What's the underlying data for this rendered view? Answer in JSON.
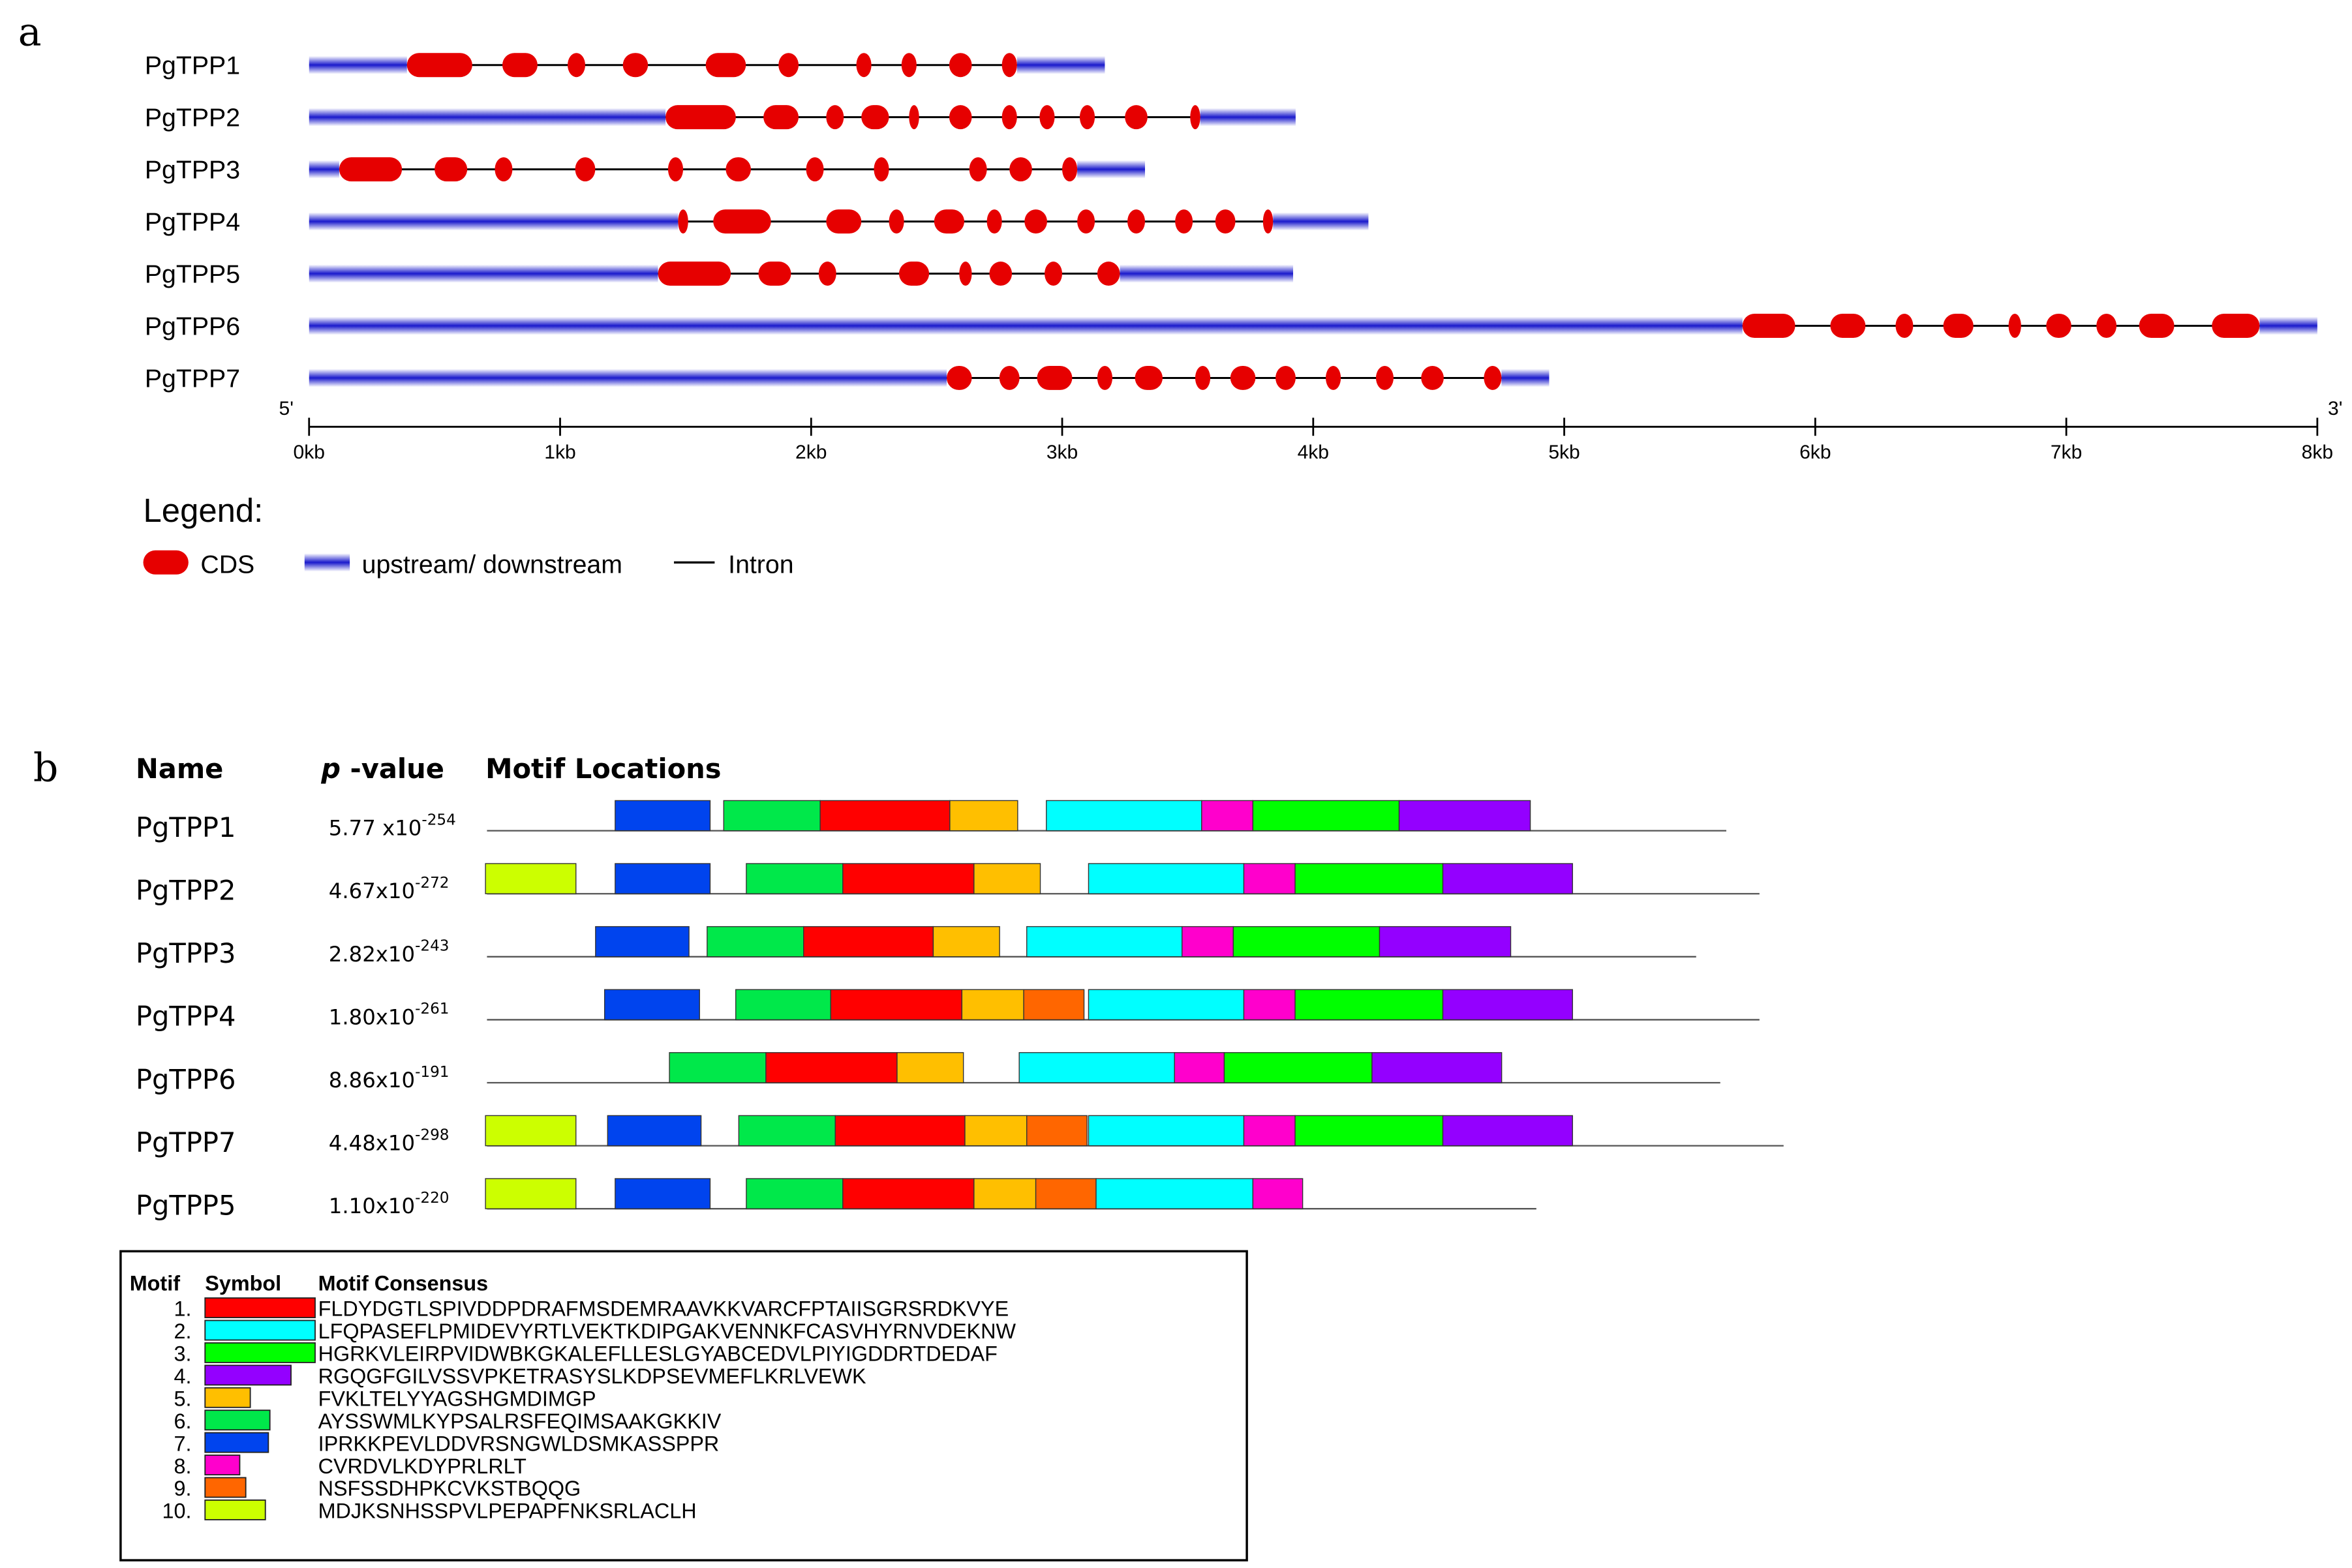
{
  "panel_a": {
    "label": "a",
    "genes": [
      {
        "name": "PgTPP1",
        "end_kb": 3.17,
        "cds": [
          [
            0.39,
            0.65
          ],
          [
            0.77,
            0.91
          ],
          [
            1.03,
            1.1
          ],
          [
            1.25,
            1.35
          ],
          [
            1.58,
            1.74
          ],
          [
            1.87,
            1.95
          ],
          [
            2.18,
            2.24
          ],
          [
            2.36,
            2.42
          ],
          [
            2.55,
            2.64
          ],
          [
            2.76,
            2.82
          ]
        ]
      },
      {
        "name": "PgTPP2",
        "end_kb": 3.93,
        "cds": [
          [
            1.42,
            1.7
          ],
          [
            1.81,
            1.95
          ],
          [
            2.06,
            2.13
          ],
          [
            2.2,
            2.31
          ],
          [
            2.39,
            2.43
          ],
          [
            2.55,
            2.64
          ],
          [
            2.76,
            2.82
          ],
          [
            2.91,
            2.97
          ],
          [
            3.07,
            3.13
          ],
          [
            3.25,
            3.34
          ],
          [
            3.51,
            3.55
          ]
        ]
      },
      {
        "name": "PgTPP3",
        "end_kb": 3.33,
        "cds": [
          [
            0.12,
            0.37
          ],
          [
            0.5,
            0.63
          ],
          [
            0.74,
            0.81
          ],
          [
            1.06,
            1.14
          ],
          [
            1.43,
            1.49
          ],
          [
            1.66,
            1.76
          ],
          [
            1.98,
            2.05
          ],
          [
            2.25,
            2.31
          ],
          [
            2.63,
            2.7
          ],
          [
            2.79,
            2.88
          ],
          [
            3.0,
            3.06
          ]
        ]
      },
      {
        "name": "PgTPP4",
        "end_kb": 4.22,
        "cds": [
          [
            1.47,
            1.51
          ],
          [
            1.61,
            1.84
          ],
          [
            2.06,
            2.2
          ],
          [
            2.31,
            2.37
          ],
          [
            2.49,
            2.61
          ],
          [
            2.7,
            2.76
          ],
          [
            2.85,
            2.94
          ],
          [
            3.06,
            3.13
          ],
          [
            3.26,
            3.33
          ],
          [
            3.45,
            3.52
          ],
          [
            3.61,
            3.69
          ],
          [
            3.8,
            3.84
          ]
        ]
      },
      {
        "name": "PgTPP5",
        "end_kb": 3.92,
        "cds": [
          [
            1.39,
            1.68
          ],
          [
            1.79,
            1.92
          ],
          [
            2.03,
            2.1
          ],
          [
            2.35,
            2.47
          ],
          [
            2.59,
            2.64
          ],
          [
            2.71,
            2.8
          ],
          [
            2.93,
            3.0
          ],
          [
            3.14,
            3.23
          ]
        ]
      },
      {
        "name": "PgTPP6",
        "end_kb": 8.0,
        "cds": [
          [
            5.71,
            5.92
          ],
          [
            6.06,
            6.2
          ],
          [
            6.32,
            6.39
          ],
          [
            6.51,
            6.63
          ],
          [
            6.77,
            6.82
          ],
          [
            6.92,
            7.02
          ],
          [
            7.12,
            7.2
          ],
          [
            7.29,
            7.43
          ],
          [
            7.58,
            7.77
          ]
        ]
      },
      {
        "name": "PgTPP7",
        "end_kb": 4.94,
        "cds": [
          [
            2.54,
            2.64
          ],
          [
            2.75,
            2.83
          ],
          [
            2.9,
            3.04
          ],
          [
            3.14,
            3.2
          ],
          [
            3.29,
            3.4
          ],
          [
            3.53,
            3.59
          ],
          [
            3.67,
            3.77
          ],
          [
            3.85,
            3.93
          ],
          [
            4.05,
            4.11
          ],
          [
            4.25,
            4.32
          ],
          [
            4.43,
            4.52
          ],
          [
            4.68,
            4.75
          ]
        ]
      }
    ],
    "axis": {
      "min_kb": 0,
      "max_kb": 8,
      "ticks": [
        "0kb",
        "1kb",
        "2kb",
        "3kb",
        "4kb",
        "5kb",
        "6kb",
        "7kb",
        "8kb"
      ],
      "five_prime": "5'",
      "three_prime": "3'"
    },
    "legend": {
      "title": "Legend:",
      "cds": "CDS",
      "utr": "upstream/ downstream",
      "intron": "Intron"
    },
    "colors": {
      "cds": "#e60000",
      "utr": "#1a1acc",
      "intron": "#000000"
    }
  },
  "panel_b": {
    "label": "b",
    "headers": {
      "name": "Name",
      "p_italic": "p",
      "p_rest": " -value",
      "locations": "Motif Locations"
    },
    "proteins": [
      {
        "name": "PgTPP1",
        "p_mantissa": "5.77 x10",
        "p_exp": "-254",
        "length_end": 1145,
        "motifs": [
          [
            7,
            408,
            471
          ],
          [
            6,
            480,
            544
          ],
          [
            1,
            544,
            630
          ],
          [
            5,
            630,
            675
          ],
          [
            2,
            694,
            797
          ],
          [
            8,
            797,
            831
          ],
          [
            3,
            831,
            928
          ],
          [
            4,
            928,
            1015
          ]
        ]
      },
      {
        "name": "PgTPP2",
        "p_mantissa": "4.67x10",
        "p_exp": "-272",
        "length_end": 1167,
        "motifs": [
          [
            10,
            322,
            382
          ],
          [
            7,
            408,
            471
          ],
          [
            6,
            495,
            559
          ],
          [
            1,
            559,
            646
          ],
          [
            5,
            646,
            690
          ],
          [
            2,
            722,
            825
          ],
          [
            8,
            825,
            859
          ],
          [
            3,
            859,
            957
          ],
          [
            4,
            957,
            1043
          ]
        ]
      },
      {
        "name": "PgTPP3",
        "p_mantissa": "2.82x10",
        "p_exp": "-243",
        "length_end": 1125,
        "motifs": [
          [
            7,
            395,
            457
          ],
          [
            6,
            469,
            533
          ],
          [
            1,
            533,
            619
          ],
          [
            5,
            619,
            663
          ],
          [
            2,
            681,
            784
          ],
          [
            8,
            784,
            818
          ],
          [
            3,
            818,
            915
          ],
          [
            4,
            915,
            1002
          ]
        ]
      },
      {
        "name": "PgTPP4",
        "p_mantissa": "1.80x10",
        "p_exp": "-261",
        "length_end": 1167,
        "motifs": [
          [
            7,
            401,
            464
          ],
          [
            6,
            488,
            551
          ],
          [
            1,
            551,
            638
          ],
          [
            5,
            638,
            679
          ],
          [
            9,
            679,
            719
          ],
          [
            2,
            722,
            825
          ],
          [
            8,
            825,
            859
          ],
          [
            3,
            859,
            957
          ],
          [
            4,
            957,
            1043
          ]
        ]
      },
      {
        "name": "PgTPP6",
        "p_mantissa": "8.86x10",
        "p_exp": "-191",
        "length_end": 1141,
        "motifs": [
          [
            6,
            444,
            508
          ],
          [
            1,
            508,
            595
          ],
          [
            5,
            595,
            639
          ],
          [
            2,
            676,
            779
          ],
          [
            8,
            779,
            812
          ],
          [
            3,
            812,
            910
          ],
          [
            4,
            910,
            996
          ]
        ]
      },
      {
        "name": "PgTPP7",
        "p_mantissa": "4.48x10",
        "p_exp": "-298",
        "length_end": 1183,
        "motifs": [
          [
            10,
            322,
            382
          ],
          [
            7,
            403,
            465
          ],
          [
            6,
            490,
            554
          ],
          [
            1,
            554,
            640
          ],
          [
            5,
            640,
            681
          ],
          [
            9,
            681,
            721
          ],
          [
            2,
            722,
            825
          ],
          [
            8,
            825,
            859
          ],
          [
            3,
            859,
            957
          ],
          [
            4,
            957,
            1043
          ]
        ]
      },
      {
        "name": "PgTPP5",
        "p_mantissa": "1.10x10",
        "p_exp": "-220",
        "length_end": 1019,
        "motifs": [
          [
            10,
            322,
            382
          ],
          [
            7,
            408,
            471
          ],
          [
            6,
            495,
            559
          ],
          [
            1,
            559,
            646
          ],
          [
            5,
            646,
            687
          ],
          [
            9,
            687,
            727
          ],
          [
            2,
            727,
            831
          ],
          [
            8,
            831,
            864
          ]
        ]
      }
    ],
    "motif_table": {
      "headers": [
        "Motif",
        "Symbol",
        "Motif Consensus"
      ],
      "rows": [
        {
          "num": "1.",
          "color": "#ff0000",
          "width": 73,
          "consensus": "FLDYDGTLSPIVDDPDRAFMSDEMRAAVKKVARCFPTAIISGRSRDKVYE"
        },
        {
          "num": "2.",
          "color": "#00ffff",
          "width": 73,
          "consensus": "LFQPASEFLPMIDEVYRTLVEKTKDIPGAKVENNKFCASVHYRNVDEKNW"
        },
        {
          "num": "3.",
          "color": "#00ff00",
          "width": 73,
          "consensus": "HGRKVLEIRPVIDWBKGKALEFLLESLGYABCEDVLPIYIGDDRTDEDAF"
        },
        {
          "num": "4.",
          "color": "#9400ff",
          "width": 57,
          "consensus": "RGQGFGILVSSVPKETRASYSLKDPSEVMEFLKRLVEWK"
        },
        {
          "num": "5.",
          "color": "#ffbf00",
          "width": 30,
          "consensus": "FVKLTELYYAGSHGMDIMGP"
        },
        {
          "num": "6.",
          "color": "#00e84a",
          "width": 43,
          "consensus": "AYSSWMLKYPSALRSFEQIMSAAKGKKIV"
        },
        {
          "num": "7.",
          "color": "#0044ee",
          "width": 42,
          "consensus": "IPRKKPEVLDDVRSNGWLDSMKASSPPR"
        },
        {
          "num": "8.",
          "color": "#ff00cc",
          "width": 23,
          "consensus": "CVRDVLKDYPRLRLT"
        },
        {
          "num": "9.",
          "color": "#ff6600",
          "width": 27,
          "consensus": "NSFSSDHPKCVKSTBQQG"
        },
        {
          "num": "10.",
          "color": "#ccff00",
          "width": 40,
          "consensus": "MDJKSNHSSPVLPEPAPFNKSRLACLH"
        }
      ]
    }
  }
}
